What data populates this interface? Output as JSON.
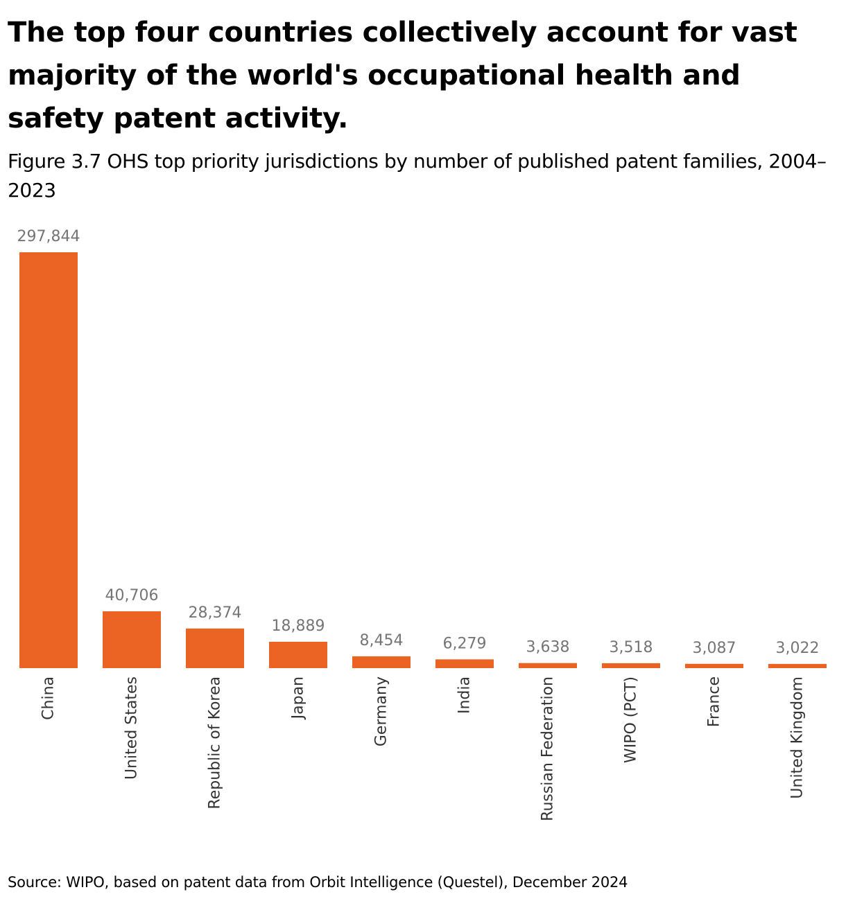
{
  "header": {
    "headline": "The top four countries collectively account for vast majority of the world's occupational health and safety patent activity.",
    "subtitle": "Figure 3.7 OHS top priority jurisdictions by number of published patent families, 2004–2023"
  },
  "footer": {
    "source": "Source: WIPO, based on patent data from Orbit Intelligence (Questel), December 2024"
  },
  "colors": {
    "bar": "#EB6424",
    "value_label": "#757575",
    "category_label": "#333333"
  },
  "chart_data": {
    "type": "bar",
    "title": "Figure 3.7 OHS top priority jurisdictions by number of published patent families, 2004–2023",
    "xlabel": "",
    "ylabel": "",
    "categories": [
      "China",
      "United States",
      "Republic of Korea",
      "Japan",
      "Germany",
      "India",
      "Russian Federation",
      "WIPO (PCT)",
      "France",
      "United Kingdom"
    ],
    "values": [
      297844,
      40706,
      28374,
      18889,
      8454,
      6279,
      3638,
      3518,
      3087,
      3022
    ],
    "value_labels": [
      "297,844",
      "40,706",
      "28,374",
      "18,889",
      "8,454",
      "6,279",
      "3,638",
      "3,518",
      "3,087",
      "3,022"
    ],
    "ylim": [
      0,
      297844
    ],
    "grid": false,
    "legend": "none"
  }
}
